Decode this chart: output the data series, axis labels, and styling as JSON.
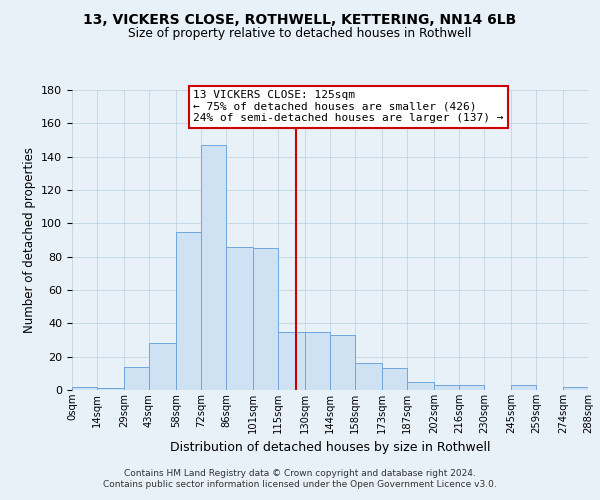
{
  "title": "13, VICKERS CLOSE, ROTHWELL, KETTERING, NN14 6LB",
  "subtitle": "Size of property relative to detached houses in Rothwell",
  "xlabel": "Distribution of detached houses by size in Rothwell",
  "ylabel": "Number of detached properties",
  "bin_edges": [
    0,
    14,
    29,
    43,
    58,
    72,
    86,
    101,
    115,
    130,
    144,
    158,
    173,
    187,
    202,
    216,
    230,
    245,
    259,
    274,
    288
  ],
  "bin_labels": [
    "0sqm",
    "14sqm",
    "29sqm",
    "43sqm",
    "58sqm",
    "72sqm",
    "86sqm",
    "101sqm",
    "115sqm",
    "130sqm",
    "144sqm",
    "158sqm",
    "173sqm",
    "187sqm",
    "202sqm",
    "216sqm",
    "230sqm",
    "245sqm",
    "259sqm",
    "274sqm",
    "288sqm"
  ],
  "counts": [
    2,
    1,
    14,
    28,
    95,
    147,
    86,
    85,
    35,
    35,
    33,
    16,
    13,
    5,
    3,
    3,
    0,
    3,
    0,
    2
  ],
  "bar_facecolor": "#cfe2f3",
  "bar_edgecolor": "#6fa8dc",
  "vline_x": 125,
  "vline_color": "#cc0000",
  "annotation_title": "13 VICKERS CLOSE: 125sqm",
  "annotation_line1": "← 75% of detached houses are smaller (426)",
  "annotation_line2": "24% of semi-detached houses are larger (137) →",
  "annotation_box_edgecolor": "#cc0000",
  "ylim": [
    0,
    180
  ],
  "yticks": [
    0,
    20,
    40,
    60,
    80,
    100,
    120,
    140,
    160,
    180
  ],
  "grid_color": "#b8cfe0",
  "background_color": "#e8f0f8",
  "footer_line1": "Contains HM Land Registry data © Crown copyright and database right 2024.",
  "footer_line2": "Contains public sector information licensed under the Open Government Licence v3.0."
}
